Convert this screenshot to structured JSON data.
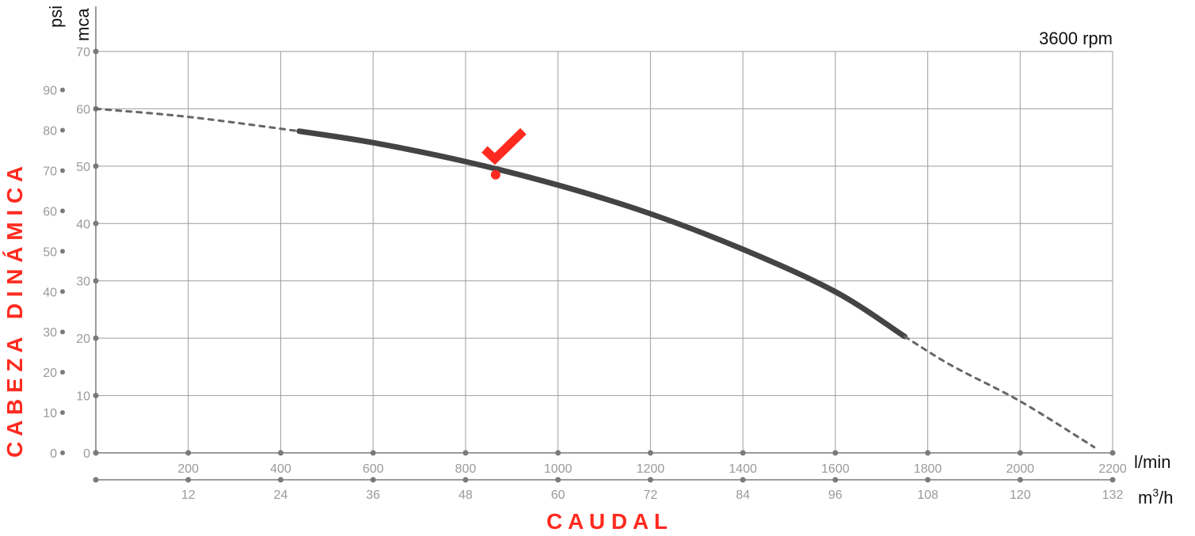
{
  "chart_data": {
    "type": "line",
    "title": "",
    "speed_label": "3600 rpm",
    "y_axis_title": "C A B E Z A   D I N Á M I C A",
    "x_axis_title": "C A U D A L",
    "x_units": {
      "primary": "l/min",
      "secondary_base": "m",
      "secondary_exp": "3",
      "secondary_tail": "/h"
    },
    "y_units": {
      "mca": "mca",
      "psi": "psi"
    },
    "x_primary_ticks": [
      "200",
      "400",
      "600",
      "800",
      "1000",
      "1200",
      "1400",
      "1600",
      "1800",
      "2000",
      "2200"
    ],
    "x_secondary_ticks": [
      "12",
      "24",
      "36",
      "48",
      "60",
      "72",
      "84",
      "96",
      "108",
      "120",
      "132"
    ],
    "y_mca_ticks": [
      "0",
      "10",
      "20",
      "30",
      "40",
      "50",
      "60",
      "70"
    ],
    "y_psi_ticks": [
      "0",
      "10",
      "20",
      "30",
      "40",
      "50",
      "60",
      "70",
      "80",
      "90"
    ],
    "xlim": [
      0,
      2200
    ],
    "ylim": [
      0,
      70
    ],
    "psi_per_mca": 1.422,
    "grid": true,
    "series": [
      {
        "role": "dashed-extension-low",
        "color": "#666666",
        "x": [
          0,
          200,
          440
        ],
        "y": [
          60,
          58.6,
          56.1
        ]
      },
      {
        "role": "operating-range",
        "color": "#444444",
        "x": [
          440,
          600,
          800,
          1000,
          1200,
          1400,
          1600,
          1750
        ],
        "y": [
          56.1,
          54.1,
          50.8,
          46.7,
          41.7,
          35.5,
          28.1,
          20.3
        ]
      },
      {
        "role": "dashed-extension-high",
        "color": "#666666",
        "x": [
          1750,
          1850,
          2000,
          2160
        ],
        "y": [
          20.3,
          15.3,
          9.0,
          1.0
        ]
      }
    ],
    "operating_point": {
      "x": 865,
      "y": 48.5,
      "color": "#ff2a1f",
      "marker": "check-icon"
    }
  }
}
